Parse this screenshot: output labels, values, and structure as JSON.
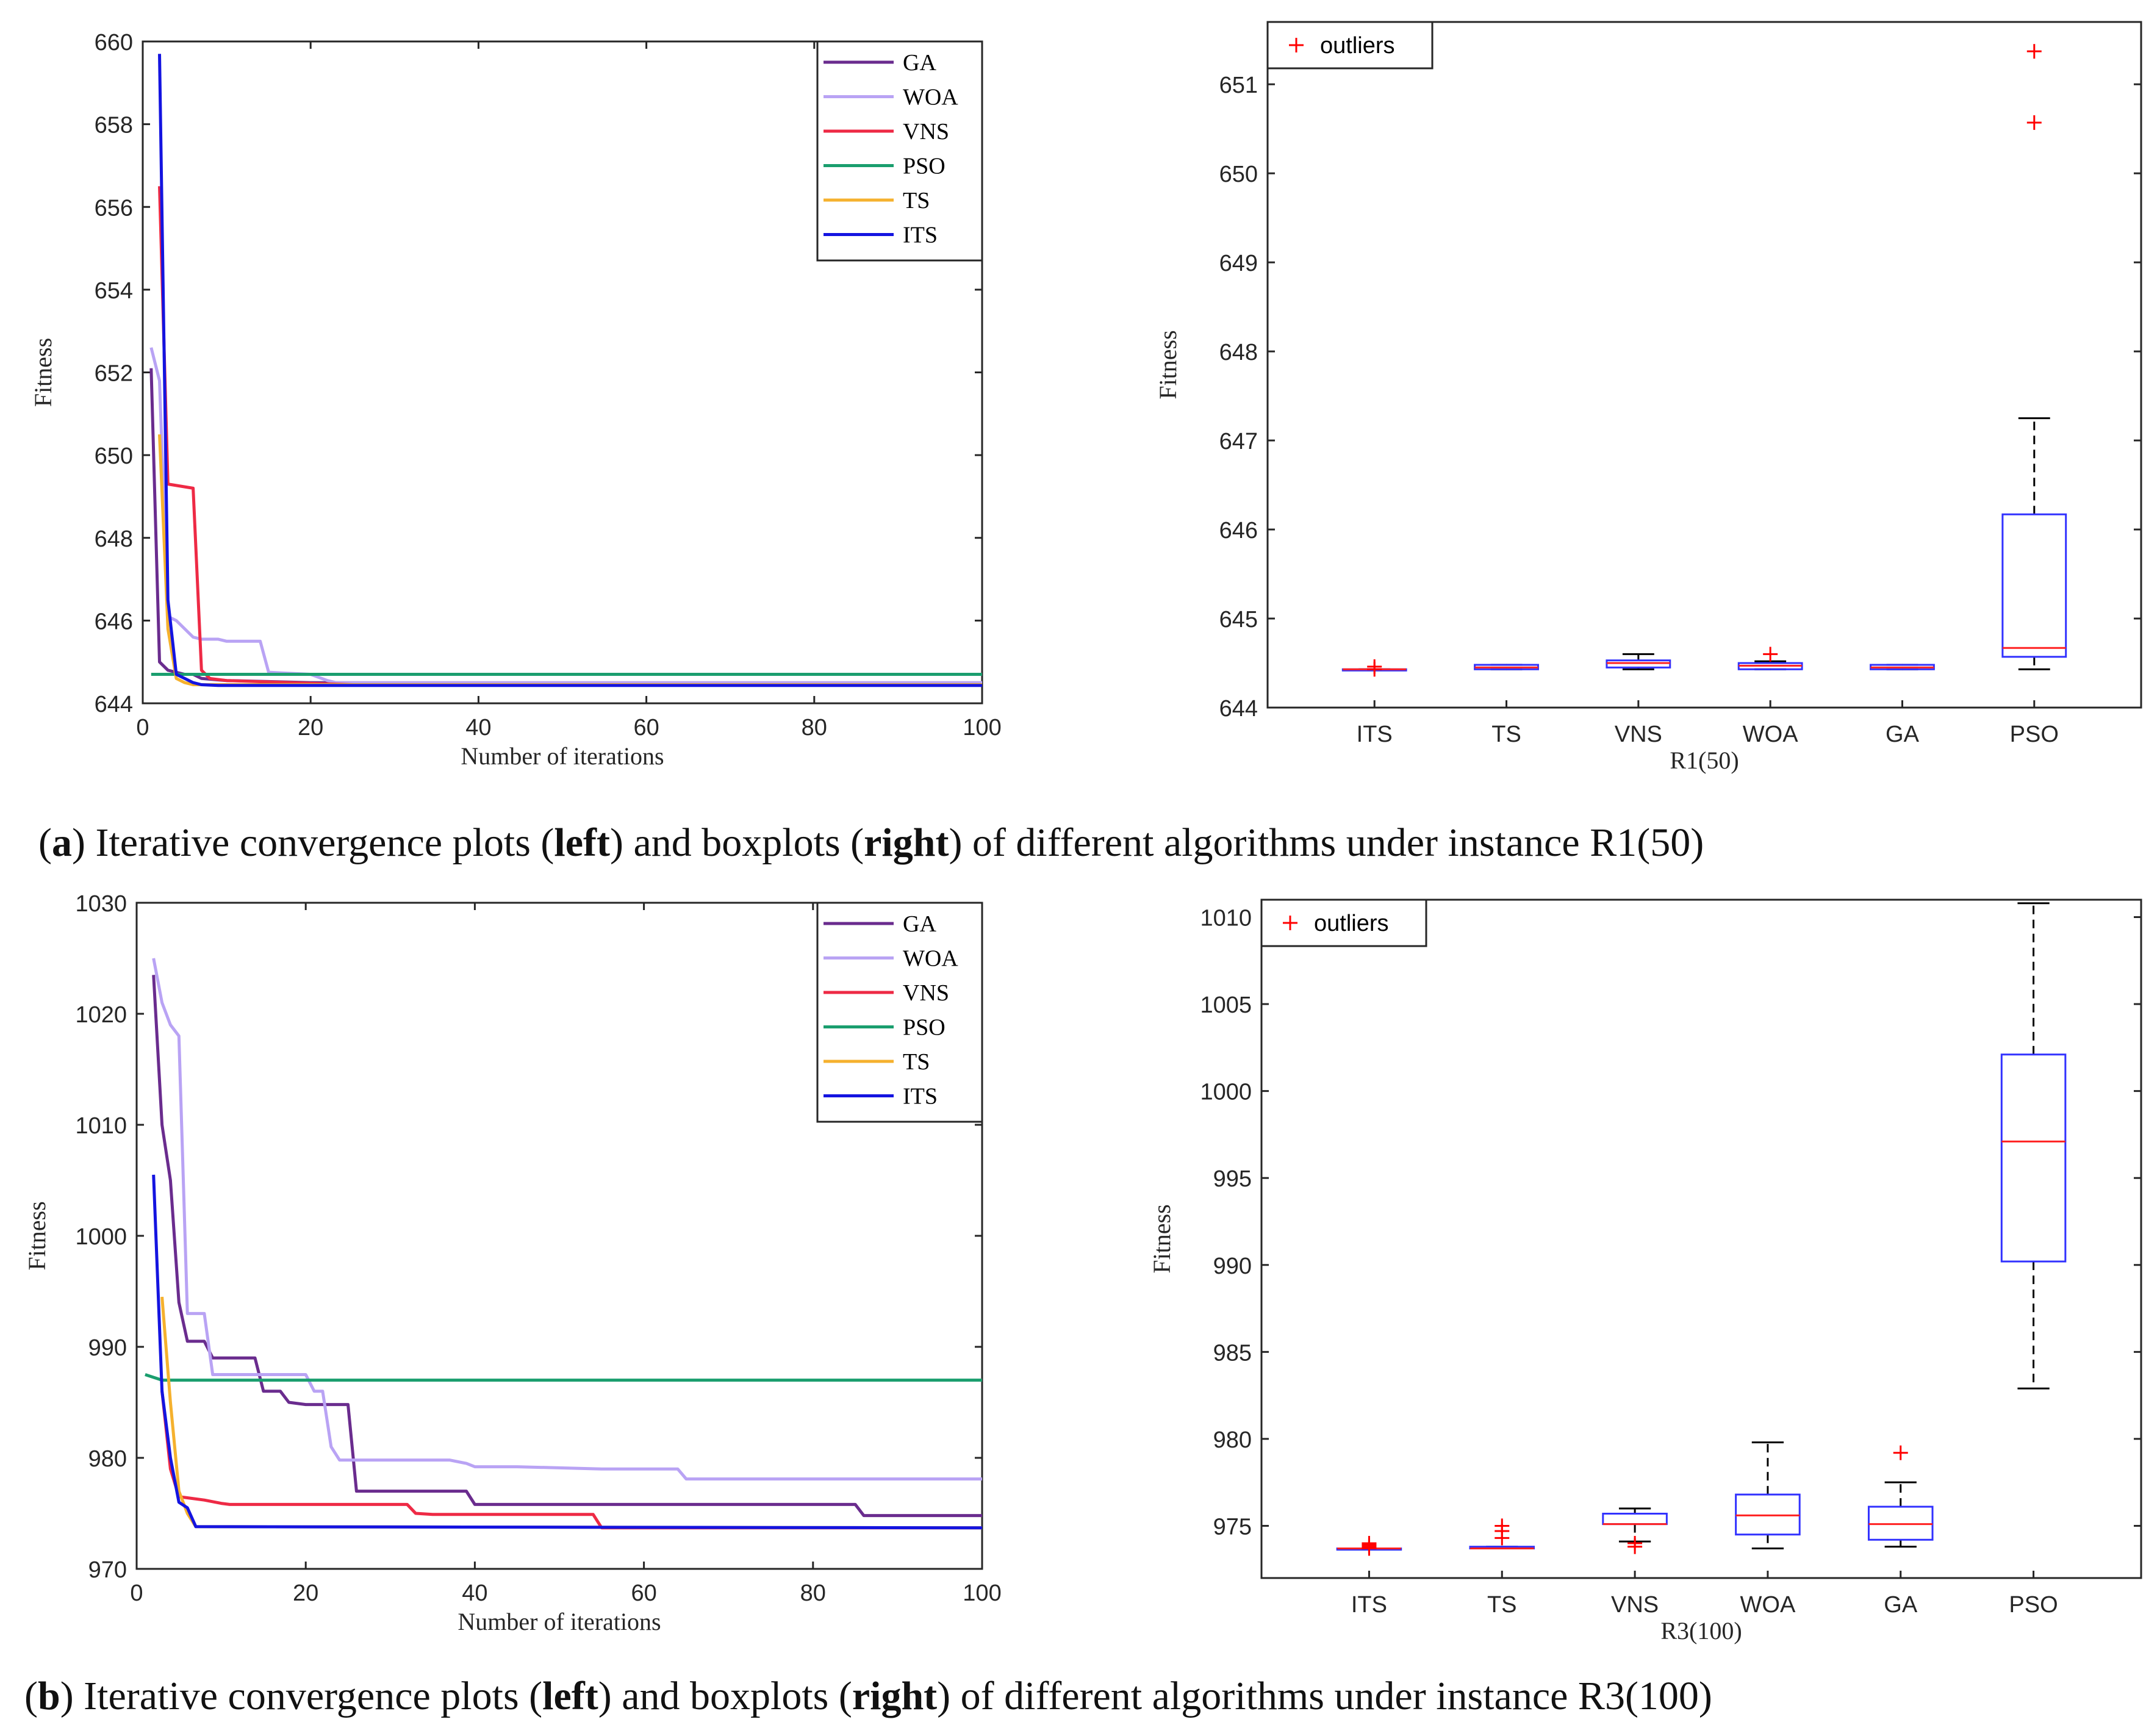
{
  "captions": [
    {
      "label": "a",
      "text_pre": ") Iterative convergence plots (",
      "left_word": "left",
      "text_mid": ") and boxplots (",
      "right_word": "right",
      "text_post": ") of different algorithms under instance R1(50)"
    },
    {
      "label": "b",
      "text_pre": ") Iterative convergence plots (",
      "left_word": "left",
      "text_mid": ") and boxplots (",
      "right_word": "right",
      "text_post": ") of different algorithms under instance R3(100)"
    }
  ],
  "colors": {
    "GA": "#6a2c8e",
    "WOA": "#b9a3f4",
    "VNS": "#ee2a45",
    "PSO": "#1a9e6e",
    "TS": "#f5b12e",
    "ITS": "#1414e0",
    "box": "#3232ff",
    "median": "#ff2020",
    "outlier": "#ff0000"
  },
  "chart_data": [
    {
      "type": "line",
      "xlabel": "Number of iterations",
      "ylabel": "Fitness",
      "xlim": [
        0,
        100
      ],
      "ylim": [
        644,
        660
      ],
      "xticks": [
        0,
        20,
        40,
        60,
        80,
        100
      ],
      "yticks": [
        644,
        646,
        648,
        650,
        652,
        654,
        656,
        658,
        660
      ],
      "series": [
        {
          "name": "GA",
          "x": [
            1,
            2,
            3,
            5,
            6,
            7,
            10,
            20,
            86
          ],
          "y": [
            652.1,
            645.0,
            644.8,
            644.7,
            644.7,
            644.6,
            644.55,
            644.5,
            644.45
          ]
        },
        {
          "name": "WOA",
          "x": [
            1,
            2,
            3,
            4,
            6,
            7,
            9,
            10,
            14,
            15,
            20,
            22,
            23,
            100
          ],
          "y": [
            652.6,
            651.8,
            646.1,
            646.0,
            645.6,
            645.55,
            645.55,
            645.5,
            645.5,
            644.75,
            644.7,
            644.55,
            644.5,
            644.5
          ]
        },
        {
          "name": "VNS",
          "x": [
            2,
            3,
            6,
            7,
            8,
            10,
            25,
            100
          ],
          "y": [
            656.5,
            649.3,
            649.2,
            644.8,
            644.6,
            644.55,
            644.45,
            644.45
          ]
        },
        {
          "name": "PSO",
          "x": [
            1,
            100
          ],
          "y": [
            644.7,
            644.7
          ]
        },
        {
          "name": "TS",
          "x": [
            2,
            3,
            4,
            5,
            6,
            100
          ],
          "y": [
            650.5,
            645.8,
            644.6,
            644.5,
            644.45,
            644.45
          ]
        },
        {
          "name": "ITS",
          "x": [
            2,
            3,
            4,
            5,
            6,
            7,
            9,
            100
          ],
          "y": [
            659.7,
            646.5,
            644.7,
            644.6,
            644.5,
            644.45,
            644.43,
            644.43
          ]
        }
      ]
    },
    {
      "type": "box",
      "xlabel": "R1(50)",
      "ylabel": "Fitness",
      "ylim": [
        644,
        651.7
      ],
      "yticks": [
        644,
        645,
        646,
        647,
        648,
        649,
        650,
        651
      ],
      "legend": "outliers",
      "boxes": [
        {
          "name": "ITS",
          "min": 644.43,
          "q1": 644.43,
          "median": 644.43,
          "q3": 644.43,
          "max": 644.43,
          "outliers": [
            644.43,
            644.46
          ]
        },
        {
          "name": "TS",
          "min": 644.43,
          "q1": 644.43,
          "median": 644.45,
          "q3": 644.48,
          "max": 644.48,
          "outliers": []
        },
        {
          "name": "VNS",
          "min": 644.43,
          "q1": 644.45,
          "median": 644.5,
          "q3": 644.53,
          "max": 644.6,
          "outliers": []
        },
        {
          "name": "WOA",
          "min": 644.43,
          "q1": 644.43,
          "median": 644.47,
          "q3": 644.5,
          "max": 644.52,
          "outliers": [
            644.6
          ]
        },
        {
          "name": "GA",
          "min": 644.43,
          "q1": 644.43,
          "median": 644.45,
          "q3": 644.48,
          "max": 644.48,
          "outliers": []
        },
        {
          "name": "PSO",
          "min": 644.43,
          "q1": 644.57,
          "median": 644.67,
          "q3": 646.17,
          "max": 647.25,
          "outliers": [
            650.57,
            651.37
          ]
        }
      ]
    },
    {
      "type": "line",
      "xlabel": "Number of iterations",
      "ylabel": "Fitness",
      "xlim": [
        0,
        100
      ],
      "ylim": [
        970,
        1030
      ],
      "xticks": [
        0,
        20,
        40,
        60,
        80,
        100
      ],
      "yticks": [
        970,
        980,
        990,
        1000,
        1010,
        1020,
        1030
      ],
      "series": [
        {
          "name": "GA",
          "x": [
            2,
            3,
            4,
            5,
            6,
            8,
            9,
            14,
            15,
            17,
            18,
            20,
            25,
            26,
            39,
            40,
            85,
            86,
            100
          ],
          "y": [
            1023.5,
            1010,
            1005,
            994,
            990.5,
            990.5,
            989,
            989,
            986,
            986,
            985,
            984.8,
            984.8,
            977,
            977,
            975.8,
            975.8,
            974.8,
            974.8
          ]
        },
        {
          "name": "WOA",
          "x": [
            2,
            3,
            4,
            5,
            6,
            7,
            8,
            9,
            20,
            21,
            22,
            23,
            24,
            37,
            39,
            40,
            45,
            55,
            64,
            65,
            100
          ],
          "y": [
            1025,
            1021,
            1019,
            1018,
            993,
            993,
            993,
            987.5,
            987.5,
            986,
            986,
            981,
            979.8,
            979.8,
            979.5,
            979.2,
            979.2,
            979.0,
            979.0,
            978.1,
            978.1
          ]
        },
        {
          "name": "VNS",
          "x": [
            3,
            4,
            5,
            6,
            8,
            10,
            11,
            32,
            33,
            35,
            45,
            54,
            55,
            100
          ],
          "y": [
            986,
            979,
            976.5,
            976.4,
            976.2,
            975.9,
            975.8,
            975.8,
            975.0,
            974.9,
            974.9,
            974.9,
            973.7,
            973.7
          ]
        },
        {
          "name": "PSO",
          "x": [
            1,
            3,
            5,
            100
          ],
          "y": [
            987.5,
            987.0,
            987.0,
            987.0
          ]
        },
        {
          "name": "TS",
          "x": [
            3,
            4,
            5,
            6,
            7,
            100
          ],
          "y": [
            994.5,
            985,
            977,
            975,
            973.8,
            973.7
          ]
        },
        {
          "name": "ITS",
          "x": [
            2,
            3,
            4,
            5,
            6,
            7,
            100
          ],
          "y": [
            1005.5,
            986,
            980,
            976,
            975.5,
            973.8,
            973.7
          ]
        }
      ]
    },
    {
      "type": "box",
      "xlabel": "R3(100)",
      "ylabel": "Fitness",
      "ylim": [
        972,
        1011
      ],
      "yticks": [
        975,
        980,
        985,
        990,
        995,
        1000,
        1005,
        1010
      ],
      "legend": "outliers",
      "boxes": [
        {
          "name": "ITS",
          "min": 973.7,
          "q1": 973.7,
          "median": 973.7,
          "q3": 973.7,
          "max": 973.7,
          "outliers": [
            973.7,
            973.8,
            973.9,
            974.0
          ]
        },
        {
          "name": "TS",
          "min": 973.7,
          "q1": 973.7,
          "median": 973.7,
          "q3": 973.8,
          "max": 973.8,
          "outliers": [
            974.3,
            974.7,
            975.0
          ]
        },
        {
          "name": "VNS",
          "min": 974.1,
          "q1": 975.1,
          "median": 975.1,
          "q3": 975.7,
          "max": 976.0,
          "outliers": [
            973.8,
            974.0
          ]
        },
        {
          "name": "WOA",
          "min": 973.7,
          "q1": 974.5,
          "median": 975.6,
          "q3": 976.8,
          "max": 979.8,
          "outliers": []
        },
        {
          "name": "GA",
          "min": 973.8,
          "q1": 974.2,
          "median": 975.1,
          "q3": 976.1,
          "max": 977.5,
          "outliers": [
            979.2
          ]
        },
        {
          "name": "PSO",
          "min": 982.9,
          "q1": 990.2,
          "median": 997.1,
          "q3": 1002.1,
          "max": 1010.8,
          "outliers": []
        }
      ]
    }
  ]
}
